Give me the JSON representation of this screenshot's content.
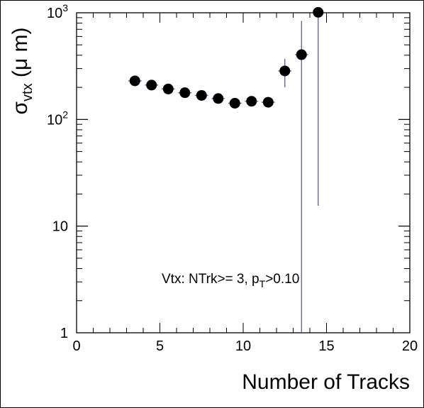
{
  "chart_data": {
    "type": "scatter",
    "title": "",
    "xlabel": "Number of Tracks",
    "ylabel": {
      "base": "σ",
      "sub": "vtx",
      "rest": " (μ m)"
    },
    "xlim": [
      0,
      20
    ],
    "ylim": [
      1,
      1000
    ],
    "yscale": "log",
    "grid": false,
    "x_ticks": [
      "0",
      "5",
      "10",
      "15",
      "20"
    ],
    "y_ticks": [
      {
        "base": "1",
        "exp": ""
      },
      {
        "base": "10",
        "exp": ""
      },
      {
        "base": "10",
        "exp": "2"
      },
      {
        "base": "10",
        "exp": "3"
      }
    ],
    "annotation": {
      "text_a": "Vtx: NTrk>= 3, p",
      "sub": "T",
      "text_b": ">0.10"
    },
    "colors": {
      "marker": "#000000",
      "error_bar": "#5a5aa8"
    },
    "points": [
      {
        "x": 3.5,
        "y": 230,
        "xerr": 0.4,
        "y_low": 230,
        "y_high": 230
      },
      {
        "x": 4.5,
        "y": 210,
        "xerr": 0.4,
        "y_low": 210,
        "y_high": 210
      },
      {
        "x": 5.5,
        "y": 193,
        "xerr": 0.4,
        "y_low": 193,
        "y_high": 193
      },
      {
        "x": 6.5,
        "y": 178,
        "xerr": 0.4,
        "y_low": 178,
        "y_high": 178
      },
      {
        "x": 7.5,
        "y": 168,
        "xerr": 0.4,
        "y_low": 168,
        "y_high": 168
      },
      {
        "x": 8.5,
        "y": 157,
        "xerr": 0.4,
        "y_low": 157,
        "y_high": 157
      },
      {
        "x": 9.5,
        "y": 142,
        "xerr": 0.4,
        "y_low": 142,
        "y_high": 142
      },
      {
        "x": 10.5,
        "y": 148,
        "xerr": 0.4,
        "y_low": 148,
        "y_high": 148
      },
      {
        "x": 11.5,
        "y": 145,
        "xerr": 0.4,
        "y_low": 145,
        "y_high": 145
      },
      {
        "x": 12.5,
        "y": 285,
        "xerr": 0.4,
        "y_low": 200,
        "y_high": 370
      },
      {
        "x": 13.5,
        "y": 405,
        "xerr": 0.4,
        "y_low": 1,
        "y_high": 840
      },
      {
        "x": 14.5,
        "y": 1010,
        "xerr": 0.4,
        "y_low": 15.5,
        "y_high": 1010
      }
    ]
  }
}
